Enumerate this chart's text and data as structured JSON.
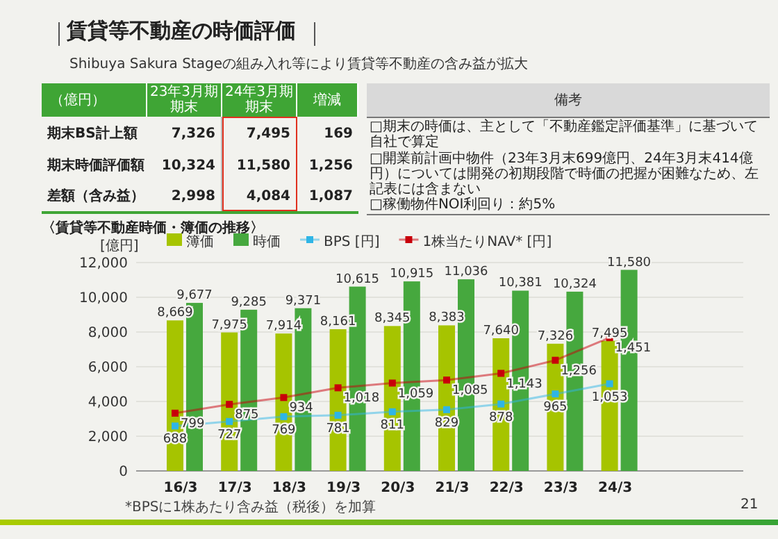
{
  "chart_data": {
    "type": "bar",
    "title": "賃貸等不動産の時価評価",
    "subtitle": "Shibuya Sakura Stageの組み入れ等により賃貸等不動産の含み益が拡大",
    "ylabel": "[億円]",
    "categories": [
      "16/3",
      "17/3",
      "18/3",
      "19/3",
      "20/3",
      "21/3",
      "22/3",
      "23/3",
      "24/3"
    ],
    "series": [
      {
        "name": "簿価",
        "color": "#a6c400",
        "values": [
          8669,
          7975,
          7914,
          8161,
          8345,
          8383,
          7640,
          7326,
          7495
        ],
        "value_labels": [
          "8,669",
          "7,975",
          "7,914",
          "8,161",
          "8,345",
          "8,383",
          "7,640",
          "7,326",
          "7,495"
        ]
      },
      {
        "name": "時価",
        "color": "#46a83e",
        "values": [
          9677,
          9285,
          9371,
          10615,
          10915,
          11036,
          10381,
          10324,
          11580
        ],
        "value_labels": [
          "9,677",
          "9,285",
          "9,371",
          "10,615",
          "10,915",
          "11,036",
          "10,381",
          "10,324",
          "11,580"
        ]
      },
      {
        "name": "BPS [円]",
        "type": "line",
        "axis": "y2",
        "marker": "square",
        "color": "#2fb5e6",
        "values": [
          688,
          727,
          769,
          781,
          811,
          829,
          878,
          965,
          1053
        ],
        "value_labels": [
          "688",
          "727",
          "769",
          "781",
          "811",
          "829",
          "878",
          "965",
          "1,053"
        ]
      },
      {
        "name": "1株当たりNAV* [円]",
        "type": "line",
        "axis": "y2",
        "marker": "square",
        "color": "#c8000a",
        "values": [
          799,
          875,
          934,
          1018,
          1059,
          1085,
          1143,
          1256,
          1451
        ],
        "value_labels": [
          "799",
          "875",
          "934",
          "1,018",
          "1,059",
          "1,085",
          "1,143",
          "1,256",
          "1,451"
        ]
      }
    ],
    "ylim": [
      0,
      12000
    ],
    "yticks": [
      0,
      {
        "value": 2000,
        "label": "2,000"
      },
      {
        "value": 4000,
        "label": "4,000"
      },
      {
        "value": 6000,
        "label": "6,000"
      },
      {
        "value": 8000,
        "label": "8,000"
      },
      {
        "value": 10000,
        "label": "10,000"
      },
      {
        "value": 12000,
        "label": "12,000"
      }
    ],
    "y2lim": [
      300,
      2100
    ],
    "grid": "y",
    "legend": "top",
    "annotations": [
      "（億円）",
      "23年3月期期末",
      "24年3月期期末",
      "増減",
      "備考",
      "期末BS計上額",
      "7,326",
      "7,495",
      "169",
      "期末時価評価額",
      "10,324",
      "11,580",
      "1,256",
      "差額（含み益）",
      "2,998",
      "4,084",
      "1,087",
      "□期末の時価は、主として「不動産鑑定評価基準」に基づいて自社で算定",
      "□開業前計画中物件（23年3月末699億円、24年3月末414億円）については開発の初期段階で時価の把握が困難なため、左記表には含まない",
      "□稼働物件NOI利回り：約5%",
      "〈賃貸等不動産時価・簿価の推移〉",
      "*BPSに1株あたり含み益（税後）を加算",
      "21"
    ]
  }
}
